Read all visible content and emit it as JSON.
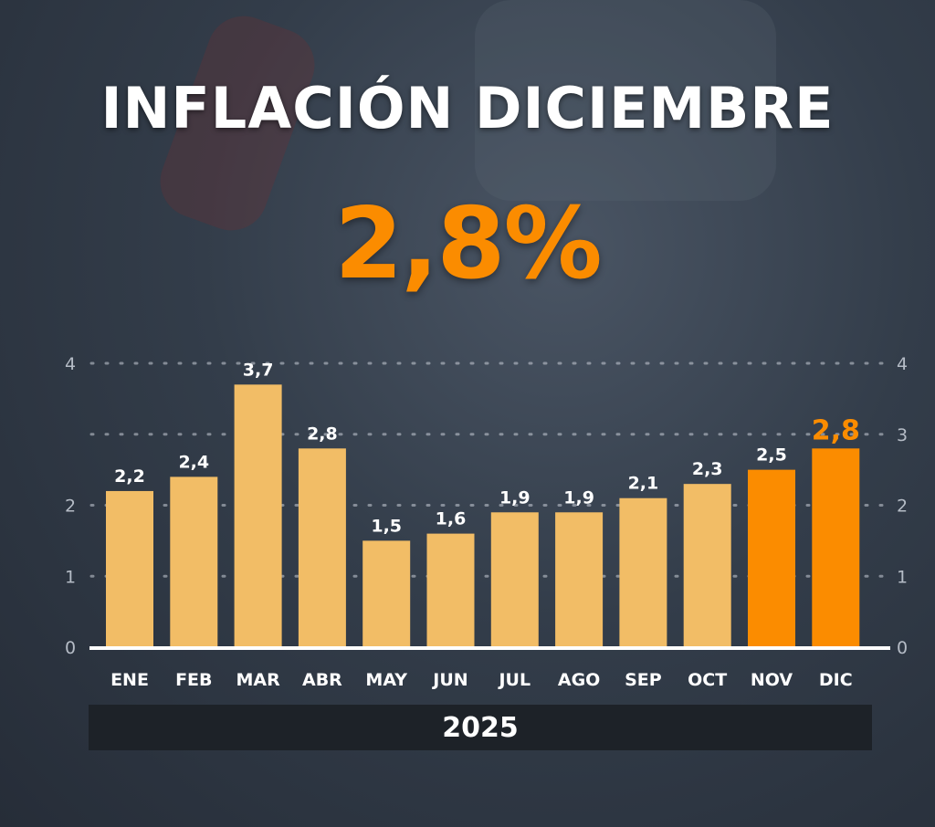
{
  "title": "INFLACIÓN DICIEMBRE",
  "headline_value": "2,8%",
  "year": "2025",
  "colors": {
    "normal": "#f2bd66",
    "highlight": "#fb8c00",
    "highlight_label": "#fb8c00"
  },
  "chart_data": {
    "type": "bar",
    "title": "INFLACIÓN DICIEMBRE",
    "xlabel": "2025",
    "ylabel": "",
    "ylim": [
      0,
      4
    ],
    "grid": true,
    "left_ticks": [
      "0",
      "1",
      "2",
      "4"
    ],
    "left_tick_values": [
      0,
      1,
      2,
      4
    ],
    "right_ticks": [
      "0",
      "1",
      "2",
      "3",
      "4"
    ],
    "right_tick_values": [
      0,
      1,
      2,
      3,
      4
    ],
    "categories": [
      "ENE",
      "FEB",
      "MAR",
      "ABR",
      "MAY",
      "JUN",
      "JUL",
      "AGO",
      "SEP",
      "OCT",
      "NOV",
      "DIC"
    ],
    "values": [
      2.2,
      2.4,
      3.7,
      2.8,
      1.5,
      1.6,
      1.9,
      1.9,
      2.1,
      2.3,
      2.5,
      2.8
    ],
    "labels": [
      "2,2",
      "2,4",
      "3,7",
      "2,8",
      "1,5",
      "1,6",
      "1,9",
      "1,9",
      "2,1",
      "2,3",
      "2,5",
      "2,8"
    ],
    "highlighted": [
      false,
      false,
      false,
      false,
      false,
      false,
      false,
      false,
      false,
      false,
      true,
      true
    ]
  }
}
